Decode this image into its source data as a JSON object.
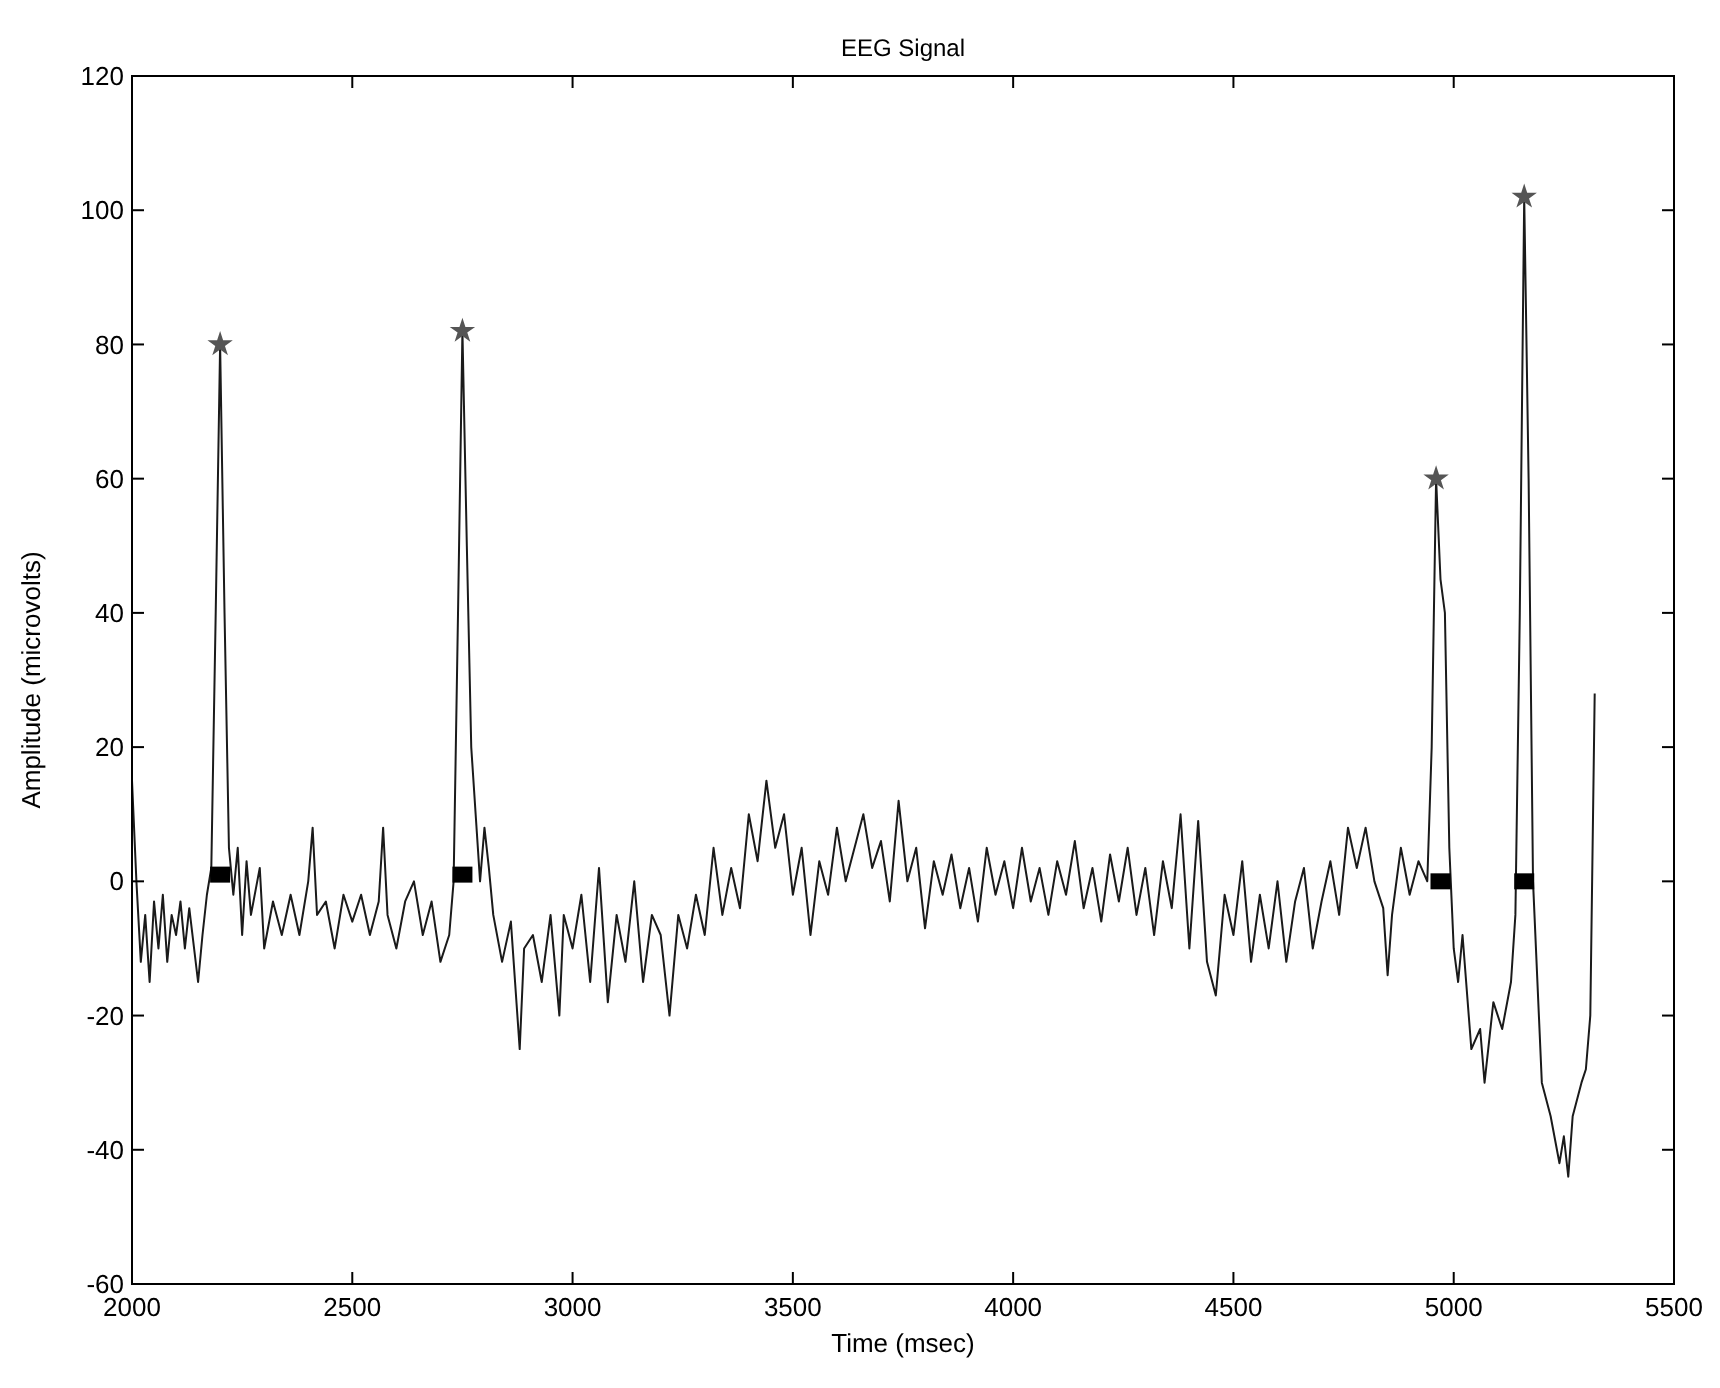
{
  "chart_data": {
    "type": "line",
    "title": "EEG Signal",
    "xlabel": "Time (msec)",
    "ylabel": "Amplitude (microvolts)",
    "xlim": [
      2000,
      5500
    ],
    "ylim": [
      -60,
      120
    ],
    "xticks": [
      2000,
      2500,
      3000,
      3500,
      4000,
      4500,
      5000,
      5500
    ],
    "yticks": [
      -60,
      -40,
      -20,
      0,
      20,
      40,
      60,
      80,
      100,
      120
    ],
    "grid": false,
    "series": [
      {
        "color": "#1a1a1a",
        "marker": "none",
        "line_style": "solid",
        "x": [
          2000,
          2010,
          2020,
          2030,
          2040,
          2050,
          2060,
          2070,
          2080,
          2090,
          2100,
          2110,
          2120,
          2130,
          2150,
          2160,
          2170,
          2180,
          2190,
          2200,
          2210,
          2220,
          2230,
          2240,
          2250,
          2260,
          2270,
          2290,
          2300,
          2320,
          2340,
          2360,
          2380,
          2400,
          2410,
          2420,
          2440,
          2460,
          2480,
          2500,
          2520,
          2540,
          2560,
          2570,
          2580,
          2600,
          2620,
          2640,
          2660,
          2680,
          2700,
          2720,
          2730,
          2740,
          2750,
          2760,
          2770,
          2780,
          2790,
          2800,
          2810,
          2820,
          2840,
          2860,
          2880,
          2890,
          2910,
          2930,
          2950,
          2970,
          2980,
          3000,
          3020,
          3040,
          3060,
          3080,
          3100,
          3120,
          3140,
          3160,
          3180,
          3200,
          3220,
          3240,
          3260,
          3280,
          3300,
          3320,
          3340,
          3360,
          3380,
          3400,
          3420,
          3440,
          3460,
          3480,
          3500,
          3520,
          3540,
          3560,
          3580,
          3600,
          3620,
          3640,
          3660,
          3680,
          3700,
          3720,
          3740,
          3760,
          3780,
          3800,
          3820,
          3840,
          3860,
          3880,
          3900,
          3920,
          3940,
          3960,
          3980,
          4000,
          4020,
          4040,
          4060,
          4080,
          4100,
          4120,
          4140,
          4160,
          4180,
          4200,
          4220,
          4240,
          4260,
          4280,
          4300,
          4320,
          4340,
          4360,
          4380,
          4400,
          4420,
          4440,
          4460,
          4480,
          4500,
          4520,
          4540,
          4560,
          4580,
          4600,
          4620,
          4640,
          4660,
          4680,
          4700,
          4720,
          4740,
          4760,
          4780,
          4800,
          4820,
          4840,
          4850,
          4860,
          4880,
          4900,
          4920,
          4940,
          4950,
          4960,
          4970,
          4980,
          4990,
          5000,
          5010,
          5020,
          5040,
          5060,
          5070,
          5090,
          5110,
          5130,
          5140,
          5150,
          5160,
          5170,
          5180,
          5200,
          5220,
          5240,
          5250,
          5260,
          5270,
          5290,
          5300,
          5310,
          5320
        ],
        "values": [
          15,
          0,
          -12,
          -5,
          -15,
          -3,
          -10,
          -2,
          -12,
          -5,
          -8,
          -3,
          -10,
          -4,
          -15,
          -8,
          -2,
          2,
          40,
          80,
          40,
          5,
          -2,
          5,
          -8,
          3,
          -5,
          2,
          -10,
          -3,
          -8,
          -2,
          -8,
          0,
          8,
          -5,
          -3,
          -10,
          -2,
          -6,
          -2,
          -8,
          -3,
          8,
          -5,
          -10,
          -3,
          0,
          -8,
          -3,
          -12,
          -8,
          0,
          40,
          82,
          50,
          20,
          10,
          0,
          8,
          2,
          -5,
          -12,
          -6,
          -25,
          -10,
          -8,
          -15,
          -5,
          -20,
          -5,
          -10,
          -2,
          -15,
          2,
          -18,
          -5,
          -12,
          0,
          -15,
          -5,
          -8,
          -20,
          -5,
          -10,
          -2,
          -8,
          5,
          -5,
          2,
          -4,
          10,
          3,
          15,
          5,
          10,
          -2,
          5,
          -8,
          3,
          -2,
          8,
          0,
          5,
          10,
          2,
          6,
          -3,
          12,
          0,
          5,
          -7,
          3,
          -2,
          4,
          -4,
          2,
          -6,
          5,
          -2,
          3,
          -4,
          5,
          -3,
          2,
          -5,
          3,
          -2,
          6,
          -4,
          2,
          -6,
          4,
          -3,
          5,
          -5,
          2,
          -8,
          3,
          -4,
          10,
          -10,
          9,
          -12,
          -17,
          -2,
          -8,
          3,
          -12,
          -2,
          -10,
          0,
          -12,
          -3,
          2,
          -10,
          -3,
          3,
          -5,
          8,
          2,
          8,
          0,
          -4,
          -14,
          -5,
          5,
          -2,
          3,
          0,
          20,
          60,
          45,
          40,
          5,
          -10,
          -15,
          -8,
          -25,
          -22,
          -30,
          -18,
          -22,
          -15,
          -5,
          40,
          102,
          60,
          0,
          -30,
          -35,
          -42,
          -38,
          -44,
          -35,
          -30,
          -28,
          -20,
          28
        ]
      },
      {
        "type": "scatter",
        "color": "#555555",
        "marker": "star",
        "x": [
          2200,
          2750,
          4960,
          5160
        ],
        "values": [
          80,
          82,
          60,
          102
        ]
      },
      {
        "type": "scatter",
        "color": "#000000",
        "marker": "square",
        "x": [
          2200,
          2750,
          4970,
          5160
        ],
        "values": [
          1,
          1,
          0,
          0
        ]
      }
    ]
  }
}
